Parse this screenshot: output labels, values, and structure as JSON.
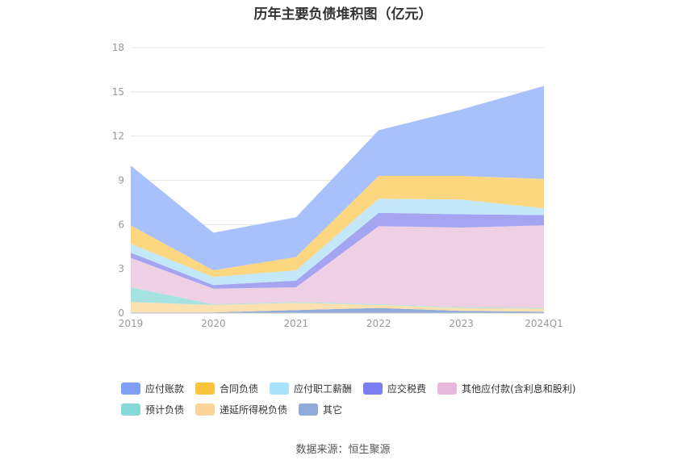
{
  "chart_data": {
    "type": "area",
    "stacked": true,
    "title": "历年主要负债堆积图（亿元）",
    "categories": [
      "2019",
      "2020",
      "2021",
      "2022",
      "2023",
      "2024Q1"
    ],
    "ylim": [
      0,
      18
    ],
    "yticks": [
      0,
      3,
      6,
      9,
      12,
      15,
      18
    ],
    "grid": true,
    "legend_position": "bottom",
    "series": [
      {
        "name": "其它",
        "color": "#8fabd9",
        "values": [
          0.05,
          0.05,
          0.2,
          0.35,
          0.15,
          0.1
        ]
      },
      {
        "name": "递延所得税负债",
        "color": "#fde0b0",
        "values": [
          0.7,
          0.5,
          0.5,
          0.2,
          0.2,
          0.2
        ]
      },
      {
        "name": "预计负债",
        "color": "#a6e3e0",
        "values": [
          1.0,
          0.05,
          0.05,
          0.05,
          0.05,
          0.05
        ]
      },
      {
        "name": "其他应付款(含利息和股利)",
        "color": "#eecfe4",
        "values": [
          2.0,
          1.05,
          1.0,
          5.3,
          5.4,
          5.6
        ]
      },
      {
        "name": "应交税费",
        "color": "#a4a4f0",
        "values": [
          0.35,
          0.25,
          0.45,
          0.9,
          0.9,
          0.7
        ]
      },
      {
        "name": "应付职工薪酬",
        "color": "#c2e8fa",
        "values": [
          0.6,
          0.55,
          0.7,
          0.95,
          1.0,
          0.45
        ]
      },
      {
        "name": "合同负债",
        "color": "#fdd680",
        "values": [
          1.25,
          0.45,
          0.9,
          1.55,
          1.6,
          2.0
        ]
      },
      {
        "name": "应付账款",
        "color": "#a8c0fb",
        "values": [
          4.05,
          2.55,
          2.7,
          3.1,
          4.5,
          6.3
        ]
      }
    ]
  },
  "legend": [
    {
      "label": "应付账款",
      "color": "#7f9ef6"
    },
    {
      "label": "合同负债",
      "color": "#fcc43c"
    },
    {
      "label": "应付职工薪酬",
      "color": "#a8e2fa"
    },
    {
      "label": "应交税费",
      "color": "#7b7ff0"
    },
    {
      "label": "其他应付款(含利息和股利)",
      "color": "#e8b9da"
    },
    {
      "label": "预计负债",
      "color": "#86d9d6"
    },
    {
      "label": "递延所得税负债",
      "color": "#fdd59a"
    },
    {
      "label": "其它",
      "color": "#8fabd9"
    }
  ],
  "source": "数据来源：恒生聚源"
}
